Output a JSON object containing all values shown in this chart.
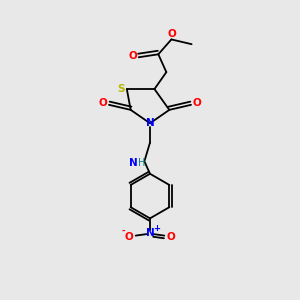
{
  "background_color": "#e8e8e8",
  "atom_colors": {
    "C": "#000000",
    "O": "#ff0000",
    "N": "#0000ff",
    "S": "#b8b800",
    "H": "#008080"
  },
  "bond_color": "#000000",
  "figsize": [
    3.0,
    3.0
  ],
  "dpi": 100,
  "lw": 1.3
}
